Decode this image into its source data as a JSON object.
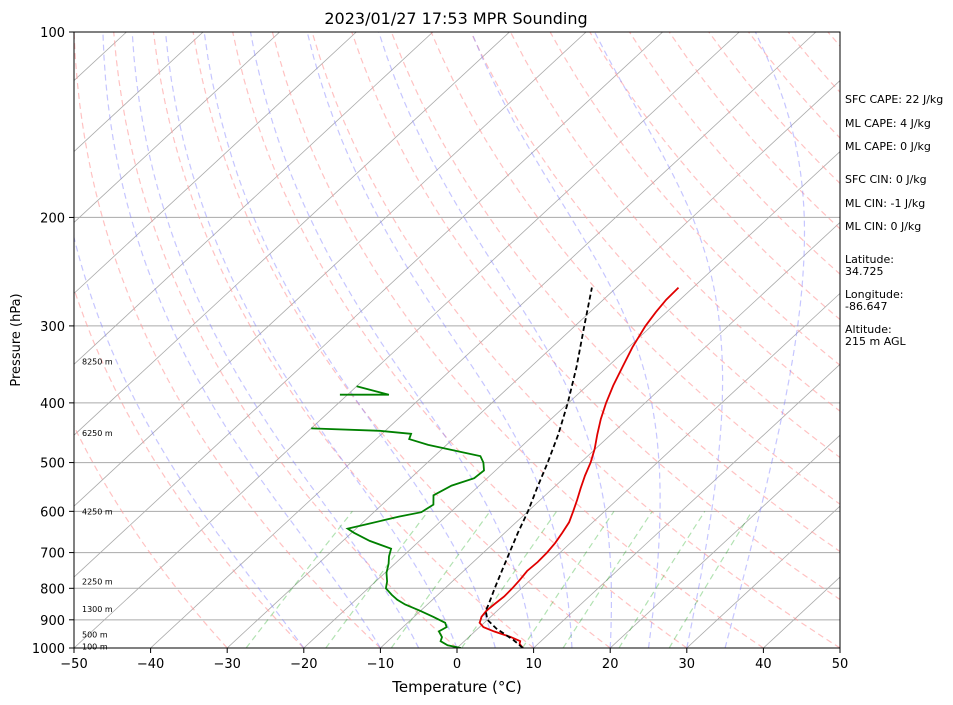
{
  "chart_data": {
    "type": "skew-t",
    "title": "2023/01/27 17:53 MPR Sounding",
    "xlabel": "Temperature (°C)",
    "ylabel": "Pressure (hPa)",
    "xlim": [
      -50,
      50
    ],
    "ylim": [
      1000,
      100
    ],
    "y_scale": "log",
    "x_ticks": [
      -50,
      -40,
      -30,
      -20,
      -10,
      0,
      10,
      20,
      30,
      40,
      50
    ],
    "x_tick_labels": [
      "−50",
      "−40",
      "−30",
      "−20",
      "−10",
      "0",
      "10",
      "20",
      "30",
      "40",
      "50"
    ],
    "y_ticks": [
      1000,
      900,
      800,
      700,
      600,
      500,
      400,
      300,
      200,
      100
    ],
    "y_tick_labels": [
      "1000",
      "900",
      "800",
      "700",
      "600",
      "500",
      "400",
      "300",
      "200",
      "100"
    ],
    "grid": true,
    "series": [
      {
        "color": "#e00000",
        "points": [
          [
            1000,
            8.6
          ],
          [
            985,
            7.6
          ],
          [
            975,
            7.3
          ],
          [
            960,
            5.5
          ],
          [
            940,
            2.5
          ],
          [
            925,
            0.5
          ],
          [
            910,
            -0.6
          ],
          [
            890,
            -1.2
          ],
          [
            870,
            -1.4
          ],
          [
            850,
            -1.3
          ],
          [
            825,
            -1.1
          ],
          [
            800,
            -1.2
          ],
          [
            775,
            -1.4
          ],
          [
            750,
            -1.7
          ],
          [
            725,
            -1.6
          ],
          [
            700,
            -1.7
          ],
          [
            675,
            -2.0
          ],
          [
            650,
            -2.5
          ],
          [
            625,
            -3.1
          ],
          [
            600,
            -4.1
          ],
          [
            575,
            -5.2
          ],
          [
            550,
            -6.4
          ],
          [
            525,
            -7.6
          ],
          [
            500,
            -8.7
          ],
          [
            475,
            -10.1
          ],
          [
            450,
            -11.8
          ],
          [
            425,
            -13.5
          ],
          [
            400,
            -15.1
          ],
          [
            375,
            -16.6
          ],
          [
            350,
            -18.0
          ],
          [
            325,
            -19.5
          ],
          [
            300,
            -20.8
          ],
          [
            285,
            -21.4
          ],
          [
            272,
            -21.8
          ],
          [
            260,
            -21.9
          ]
        ]
      },
      {
        "color": "#008000",
        "points": [
          [
            1000,
            0.5
          ],
          [
            990,
            -1.6
          ],
          [
            975,
            -3.1
          ],
          [
            960,
            -3.5
          ],
          [
            940,
            -4.7
          ],
          [
            925,
            -4.3
          ],
          [
            910,
            -5.1
          ],
          [
            890,
            -7.5
          ],
          [
            870,
            -10.1
          ],
          [
            850,
            -12.9
          ],
          [
            835,
            -14.6
          ],
          [
            820,
            -16.0
          ],
          [
            800,
            -17.7
          ],
          [
            780,
            -18.5
          ],
          [
            755,
            -19.8
          ],
          [
            730,
            -20.8
          ],
          [
            710,
            -21.8
          ],
          [
            690,
            -22.6
          ],
          [
            670,
            -26.5
          ],
          [
            650,
            -29.7
          ],
          [
            640,
            -31.1
          ],
          [
            630,
            -29.3
          ],
          [
            612,
            -26.1
          ],
          [
            602,
            -23.8
          ],
          [
            585,
            -23.3
          ],
          [
            565,
            -24.6
          ],
          [
            545,
            -23.6
          ],
          [
            530,
            -21.7
          ],
          [
            515,
            -21.5
          ],
          [
            500,
            -22.7
          ],
          [
            488,
            -24.0
          ],
          [
            468,
            -32.4
          ],
          [
            458,
            -35.7
          ],
          [
            449,
            -36.2
          ],
          [
            444,
            -40.7
          ],
          [
            440,
            -50.0
          ]
        ]
      },
      {
        "color": "#008000",
        "points": [
          [
            388,
            -51.0
          ],
          [
            388,
            -44.6
          ],
          [
            376,
            -50.0
          ]
        ]
      },
      {
        "color": "#000000",
        "dashed": true,
        "points": [
          [
            1000,
            8.6
          ],
          [
            970,
            6.2
          ],
          [
            930,
            2.4
          ],
          [
            900,
            0.0
          ],
          [
            870,
            -1.5
          ],
          [
            850,
            -2.0
          ],
          [
            800,
            -3.5
          ],
          [
            750,
            -5.0
          ],
          [
            700,
            -6.6
          ],
          [
            650,
            -8.3
          ],
          [
            600,
            -10.0
          ],
          [
            550,
            -12.1
          ],
          [
            500,
            -14.3
          ],
          [
            450,
            -16.9
          ],
          [
            400,
            -20.1
          ],
          [
            350,
            -24.0
          ],
          [
            300,
            -28.8
          ],
          [
            260,
            -33.2
          ]
        ]
      }
    ],
    "height_labels": [
      {
        "p": 995,
        "text": "100 m"
      },
      {
        "p": 950,
        "text": "500 m"
      },
      {
        "p": 865,
        "text": "1300 m"
      },
      {
        "p": 780,
        "text": "2250 m"
      },
      {
        "p": 600,
        "text": "4250 m"
      },
      {
        "p": 448,
        "text": "6250 m"
      },
      {
        "p": 343,
        "text": "8250 m"
      }
    ],
    "annotations": [
      "SFC CAPE: 22 J/kg",
      "ML CAPE: 4 J/kg",
      "ML CAPE: 0 J/kg",
      "SFC CIN: 0 J/kg",
      "ML CIN: -1 J/kg",
      "ML CIN: 0 J/kg",
      "Latitude:\n34.725",
      "Longitude:\n-86.647",
      "Altitude:\n215 m AGL"
    ]
  }
}
